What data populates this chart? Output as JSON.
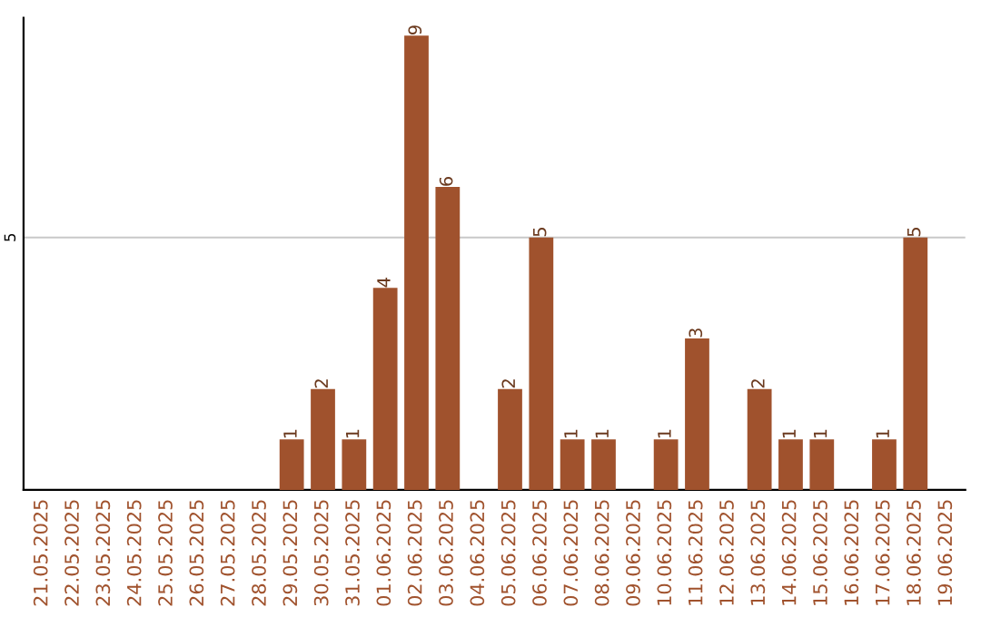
{
  "chart_data": {
    "type": "bar",
    "categories": [
      "21.05.2025",
      "22.05.2025",
      "23.05.2025",
      "24.05.2025",
      "25.05.2025",
      "26.05.2025",
      "27.05.2025",
      "28.05.2025",
      "29.05.2025",
      "30.05.2025",
      "31.05.2025",
      "01.06.2025",
      "02.06.2025",
      "03.06.2025",
      "04.06.2025",
      "05.06.2025",
      "06.06.2025",
      "07.06.2025",
      "08.06.2025",
      "09.06.2025",
      "10.06.2025",
      "11.06.2025",
      "12.06.2025",
      "13.06.2025",
      "14.06.2025",
      "15.06.2025",
      "16.06.2025",
      "17.06.2025",
      "18.06.2025",
      "19.06.2025"
    ],
    "values": [
      0,
      0,
      0,
      0,
      0,
      0,
      0,
      0,
      1,
      2,
      1,
      4,
      9,
      6,
      0,
      2,
      5,
      1,
      1,
      0,
      1,
      3,
      0,
      2,
      1,
      1,
      0,
      1,
      5,
      0
    ],
    "value_labels": [
      null,
      null,
      null,
      null,
      null,
      null,
      null,
      null,
      "1",
      "2",
      "1",
      "4",
      "9",
      "6",
      null,
      "2",
      "5",
      "1",
      "1",
      null,
      "1",
      "3",
      null,
      "2",
      "1",
      "1",
      null,
      "1",
      "5",
      null
    ],
    "color": "#a0522d",
    "ylim": [
      0,
      9.35
    ],
    "yticks": [
      5
    ],
    "grid": "y",
    "legend": false
  }
}
